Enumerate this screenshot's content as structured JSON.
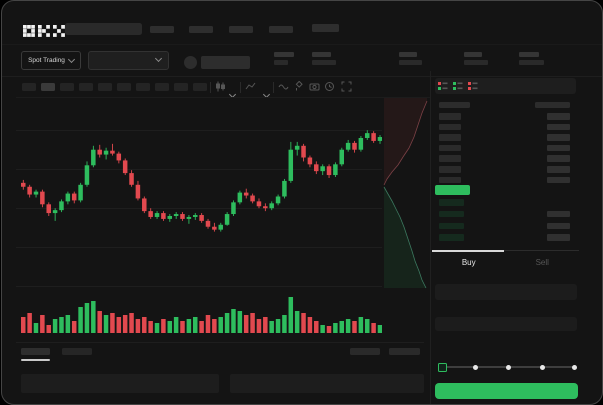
{
  "app": {
    "logo_text": "OKX"
  },
  "header": {
    "market_type_label": "Spot Trading"
  },
  "colors": {
    "up": "#2ebd5e",
    "down": "#e2494f",
    "window_bg": "#141414",
    "accent_green": "#2ebd5e",
    "grid": "rgba(255,255,255,0.045)",
    "bid_row_tint": "#152a1e",
    "depth_ask_fill": "rgba(226,73,79,0.08)",
    "depth_ask_line": "#7c4146",
    "depth_bid_fill": "rgba(46,189,94,0.10)",
    "depth_bid_line": "#3c7a60"
  },
  "chart_data": {
    "type": "candlestick",
    "title": "",
    "xlabel": "",
    "ylabel": "",
    "axis_labels_visible": false,
    "grid": true,
    "y_range": [
      0,
      100
    ],
    "candles": [
      [
        57,
        58.5,
        53.5,
        55
      ],
      [
        55,
        56,
        49.5,
        51
      ],
      [
        51,
        53.5,
        49.5,
        52.5
      ],
      [
        52.5,
        53.5,
        44.5,
        46
      ],
      [
        46,
        47,
        40,
        41.5
      ],
      [
        41.5,
        44,
        37.5,
        43
      ],
      [
        43,
        48.5,
        42,
        47.5
      ],
      [
        47.5,
        52.5,
        46,
        51.5
      ],
      [
        51.5,
        52.5,
        46.5,
        48
      ],
      [
        48,
        57,
        47,
        56
      ],
      [
        56,
        68,
        55,
        66
      ],
      [
        66,
        76,
        65,
        74
      ],
      [
        74,
        76.5,
        70,
        71.5
      ],
      [
        71.5,
        75,
        69,
        73.5
      ],
      [
        73.5,
        77,
        71,
        72
      ],
      [
        72,
        73,
        67,
        68.5
      ],
      [
        68.5,
        69.5,
        61,
        62
      ],
      [
        62,
        63.5,
        55,
        56
      ],
      [
        56,
        58,
        48,
        49
      ],
      [
        49,
        50,
        41.5,
        42.5
      ],
      [
        42.5,
        44,
        38.5,
        39.5
      ],
      [
        39.5,
        42.5,
        38.5,
        41.5
      ],
      [
        41.5,
        42.5,
        37.5,
        38.5
      ],
      [
        38.5,
        41,
        37,
        40
      ],
      [
        40,
        42,
        38.5,
        41
      ],
      [
        41,
        42,
        37.5,
        38.5
      ],
      [
        38.5,
        40.5,
        36,
        39.5
      ],
      [
        39.5,
        41.5,
        38,
        40.5
      ],
      [
        40.5,
        41.5,
        36.5,
        37.5
      ],
      [
        37.5,
        38.5,
        33.5,
        34.5
      ],
      [
        34.5,
        36.5,
        32,
        33
      ],
      [
        33,
        36.5,
        32,
        35.5
      ],
      [
        35.5,
        42,
        35,
        41
      ],
      [
        41,
        48,
        40,
        47
      ],
      [
        47,
        53,
        46,
        52
      ],
      [
        52,
        54,
        49,
        50.5
      ],
      [
        50.5,
        51.5,
        46.5,
        47.5
      ],
      [
        47.5,
        49,
        44,
        45
      ],
      [
        45,
        46.5,
        42.5,
        44
      ],
      [
        44,
        47.5,
        43,
        46.5
      ],
      [
        46.5,
        51,
        45.5,
        50
      ],
      [
        50,
        59,
        49,
        58
      ],
      [
        58,
        78,
        57,
        74
      ],
      [
        74,
        78,
        71,
        76
      ],
      [
        76,
        77,
        68,
        70
      ],
      [
        70,
        71,
        65,
        66.5
      ],
      [
        66.5,
        68,
        61.5,
        63
      ],
      [
        63,
        66.5,
        61,
        65.5
      ],
      [
        65.5,
        66.5,
        59.5,
        61
      ],
      [
        61,
        67.5,
        60,
        66.5
      ],
      [
        66.5,
        75,
        65.5,
        74
      ],
      [
        74,
        79,
        73,
        77.5
      ],
      [
        77.5,
        78.5,
        72.5,
        74
      ],
      [
        74,
        81,
        73,
        80
      ],
      [
        80,
        84,
        79,
        82.5
      ],
      [
        82.5,
        83.5,
        77.5,
        78.5
      ],
      [
        78.5,
        81.5,
        77,
        80.5
      ]
    ],
    "volumes": [
      16,
      20,
      10,
      18,
      8,
      14,
      16,
      18,
      12,
      26,
      30,
      32,
      22,
      18,
      20,
      16,
      18,
      20,
      14,
      16,
      12,
      10,
      14,
      12,
      16,
      12,
      14,
      16,
      12,
      18,
      14,
      16,
      20,
      24,
      22,
      18,
      20,
      14,
      16,
      12,
      14,
      18,
      36,
      22,
      20,
      16,
      12,
      8,
      7,
      10,
      12,
      14,
      12,
      16,
      14,
      10,
      8
    ],
    "depth": {
      "asks_line": [
        [
          44,
          3
        ],
        [
          39,
          15
        ],
        [
          35,
          27
        ],
        [
          31,
          39
        ],
        [
          26,
          50
        ],
        [
          20,
          59
        ],
        [
          15,
          67
        ],
        [
          9,
          74
        ],
        [
          4,
          81
        ],
        [
          1,
          87
        ]
      ],
      "bids_line": [
        [
          1,
          89
        ],
        [
          5,
          96
        ],
        [
          9,
          103
        ],
        [
          13,
          111
        ],
        [
          17,
          119
        ],
        [
          21,
          129
        ],
        [
          25,
          141
        ],
        [
          29,
          153
        ],
        [
          32,
          163
        ],
        [
          36,
          173
        ],
        [
          39,
          182
        ],
        [
          43,
          190
        ]
      ]
    }
  },
  "orderbook": {
    "view_toggles": [
      "book-split-view",
      "book-bids-view",
      "book-asks-view"
    ],
    "asks": [
      {
        "amount": true
      },
      {
        "amount": true
      },
      {
        "amount": true
      },
      {
        "amount": true
      },
      {
        "amount": true
      },
      {
        "amount": true
      },
      {
        "amount": true
      }
    ],
    "bids": [
      {
        "amount": false
      },
      {
        "amount": true
      },
      {
        "amount": true
      },
      {
        "amount": true
      }
    ],
    "last_price_direction": "up"
  },
  "trade_panel": {
    "tabs": {
      "buy": "Buy",
      "sell": "Sell"
    },
    "active_tab": "buy",
    "slider_stops": 5,
    "slider_value_index": 0
  }
}
